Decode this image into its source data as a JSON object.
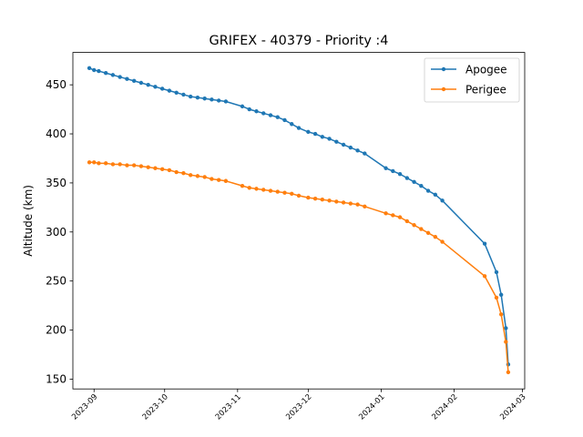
{
  "chart_data": {
    "type": "line",
    "title": "GRIFEX - 40379 - Priority :4",
    "xlabel": "",
    "ylabel": "Altitude (km)",
    "x_axis_type": "date",
    "xlim": [
      "2023-08-23",
      "2024-03-02"
    ],
    "ylim": [
      140,
      483
    ],
    "x_ticks": [
      "2023-09",
      "2023-10",
      "2023-11",
      "2023-12",
      "2024-01",
      "2024-02",
      "2024-03"
    ],
    "x_tick_dates": [
      "2023-09-01",
      "2023-10-01",
      "2023-11-01",
      "2023-12-01",
      "2024-01-01",
      "2024-02-01",
      "2024-03-01"
    ],
    "y_ticks": [
      150,
      200,
      250,
      300,
      350,
      400,
      450
    ],
    "grid": false,
    "legend_position": "upper right",
    "series": [
      {
        "name": "Apogee",
        "color": "#1f77b4",
        "marker": "circle",
        "x": [
          "2023-08-30",
          "2023-09-01",
          "2023-09-03",
          "2023-09-06",
          "2023-09-09",
          "2023-09-12",
          "2023-09-15",
          "2023-09-18",
          "2023-09-21",
          "2023-09-24",
          "2023-09-27",
          "2023-09-30",
          "2023-10-03",
          "2023-10-06",
          "2023-10-09",
          "2023-10-12",
          "2023-10-15",
          "2023-10-18",
          "2023-10-21",
          "2023-10-24",
          "2023-10-27",
          "2023-11-03",
          "2023-11-06",
          "2023-11-09",
          "2023-11-12",
          "2023-11-15",
          "2023-11-18",
          "2023-11-21",
          "2023-11-24",
          "2023-11-27",
          "2023-12-01",
          "2023-12-04",
          "2023-12-07",
          "2023-12-10",
          "2023-12-13",
          "2023-12-16",
          "2023-12-19",
          "2023-12-22",
          "2023-12-25",
          "2024-01-03",
          "2024-01-06",
          "2024-01-09",
          "2024-01-12",
          "2024-01-15",
          "2024-01-18",
          "2024-01-21",
          "2024-01-24",
          "2024-01-27",
          "2024-02-14",
          "2024-02-19",
          "2024-02-21",
          "2024-02-23",
          "2024-02-24"
        ],
        "y": [
          467,
          465,
          464,
          462,
          460,
          458,
          456,
          454,
          452,
          450,
          448,
          446,
          444,
          442,
          440,
          438,
          437,
          436,
          435,
          434,
          433,
          428,
          425,
          423,
          421,
          419,
          417,
          414,
          410,
          406,
          402,
          400,
          397,
          395,
          392,
          389,
          386,
          383,
          380,
          365,
          362,
          359,
          355,
          351,
          347,
          342,
          338,
          332,
          288,
          259,
          236,
          202,
          165
        ]
      },
      {
        "name": "Perigee",
        "color": "#ff7f0e",
        "marker": "circle",
        "x": [
          "2023-08-30",
          "2023-09-01",
          "2023-09-03",
          "2023-09-06",
          "2023-09-09",
          "2023-09-12",
          "2023-09-15",
          "2023-09-18",
          "2023-09-21",
          "2023-09-24",
          "2023-09-27",
          "2023-09-30",
          "2023-10-03",
          "2023-10-06",
          "2023-10-09",
          "2023-10-12",
          "2023-10-15",
          "2023-10-18",
          "2023-10-21",
          "2023-10-24",
          "2023-10-27",
          "2023-11-03",
          "2023-11-06",
          "2023-11-09",
          "2023-11-12",
          "2023-11-15",
          "2023-11-18",
          "2023-11-21",
          "2023-11-24",
          "2023-11-27",
          "2023-12-01",
          "2023-12-04",
          "2023-12-07",
          "2023-12-10",
          "2023-12-13",
          "2023-12-16",
          "2023-12-19",
          "2023-12-22",
          "2023-12-25",
          "2024-01-03",
          "2024-01-06",
          "2024-01-09",
          "2024-01-12",
          "2024-01-15",
          "2024-01-18",
          "2024-01-21",
          "2024-01-24",
          "2024-01-27",
          "2024-02-14",
          "2024-02-19",
          "2024-02-21",
          "2024-02-23",
          "2024-02-24"
        ],
        "y": [
          371,
          371,
          370,
          370,
          369,
          369,
          368,
          368,
          367,
          366,
          365,
          364,
          363,
          361,
          360,
          358,
          357,
          356,
          354,
          353,
          352,
          347,
          345,
          344,
          343,
          342,
          341,
          340,
          339,
          337,
          335,
          334,
          333,
          332,
          331,
          330,
          329,
          328,
          326,
          319,
          317,
          315,
          311,
          307,
          303,
          299,
          295,
          290,
          255,
          233,
          216,
          188,
          157
        ]
      }
    ]
  }
}
